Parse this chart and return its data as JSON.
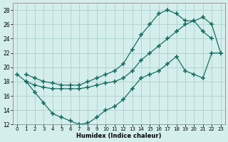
{
  "xlabel": "Humidex (Indice chaleur)",
  "bg_color": "#d4eeec",
  "grid_color": "#b0d4d0",
  "line_color": "#1a6e64",
  "xlim": [
    -0.5,
    23.5
  ],
  "ylim": [
    12,
    29
  ],
  "xticks": [
    0,
    1,
    2,
    3,
    4,
    5,
    6,
    7,
    8,
    9,
    10,
    11,
    12,
    13,
    14,
    15,
    16,
    17,
    18,
    19,
    20,
    21,
    22,
    23
  ],
  "yticks": [
    12,
    14,
    16,
    18,
    20,
    22,
    24,
    26,
    28
  ],
  "curve_top": {
    "x": [
      1,
      2,
      3,
      4,
      5,
      6,
      7,
      8,
      9,
      10,
      11,
      12,
      13,
      14,
      15,
      16,
      17,
      18,
      19,
      20,
      21,
      22
    ],
    "y": [
      19,
      18.5,
      18,
      17.8,
      17.5,
      17.5,
      17.5,
      18,
      18.5,
      19,
      19.5,
      20.5,
      22.5,
      24.5,
      26,
      27.5,
      28,
      27.5,
      26.5,
      26.5,
      25,
      24
    ]
  },
  "curve_mid": {
    "x": [
      1,
      2,
      3,
      4,
      5,
      6,
      7,
      8,
      9,
      10,
      11,
      12,
      13,
      14,
      15,
      16,
      17,
      18,
      19,
      20,
      21,
      22,
      23
    ],
    "y": [
      18,
      17.5,
      17.2,
      17,
      17,
      17,
      17,
      17.2,
      17.5,
      17.8,
      18,
      18.5,
      19.5,
      21,
      22,
      23,
      24,
      25,
      26,
      26.5,
      27,
      26,
      22
    ]
  },
  "curve_bot": {
    "x": [
      0,
      1,
      2,
      3,
      4,
      5,
      6,
      7,
      8,
      9,
      10,
      11,
      12,
      13,
      14,
      15,
      16,
      17,
      18,
      19,
      20,
      21,
      22,
      23
    ],
    "y": [
      19,
      18,
      16.5,
      15,
      13.5,
      13,
      12.5,
      12,
      12.2,
      13,
      14,
      14.5,
      15.5,
      17,
      18.5,
      19,
      19.5,
      20.5,
      21.5,
      19.5,
      19,
      18.5,
      22,
      22
    ]
  }
}
